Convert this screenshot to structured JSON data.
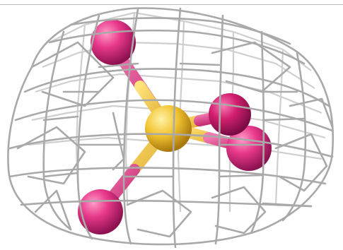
{
  "scene": {
    "atoms": [
      {
        "element": "O",
        "color": "#e23d8a"
      },
      {
        "element": "O",
        "color": "#e23d8a"
      },
      {
        "element": "O",
        "color": "#e23d8a"
      },
      {
        "element": "O",
        "color": "#e23d8a"
      },
      {
        "element": "S",
        "color": "#f2c431"
      }
    ],
    "mesh_color": "#b8b8b8",
    "background": "#ffffff"
  }
}
